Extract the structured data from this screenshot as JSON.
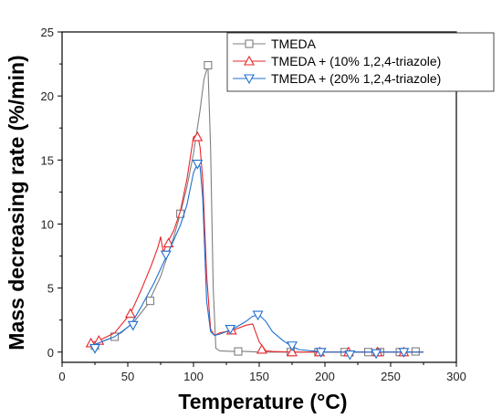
{
  "chart_data": {
    "type": "line",
    "xlabel": "Temperature (°C)",
    "ylabel": "Mass decreasing rate (%/min)",
    "xlim": [
      0,
      300
    ],
    "ylim": [
      -0.8,
      25
    ],
    "xticks": [
      0,
      50,
      100,
      150,
      200,
      250,
      300
    ],
    "yticks": [
      0,
      5,
      10,
      15,
      20,
      25
    ],
    "grid": false,
    "legend_position": "top-right",
    "series": [
      {
        "name": "TMEDA",
        "color": "#7f7f7f",
        "marker": "square",
        "x": [
          22,
          28,
          35,
          45,
          55,
          65,
          75,
          85,
          90,
          95,
          100,
          105,
          108,
          111,
          113,
          115,
          117,
          120,
          130,
          140,
          150,
          160,
          180,
          200,
          220,
          240,
          260,
          275
        ],
        "y": [
          0.5,
          0.75,
          1.0,
          1.5,
          2.4,
          3.7,
          5.9,
          9.0,
          10.8,
          12.9,
          15.5,
          18.9,
          21.3,
          22.4,
          16.0,
          5.0,
          0.3,
          0.1,
          0.05,
          0.05,
          0.0,
          0.0,
          0.0,
          0.0,
          0.0,
          0.0,
          0.0,
          0.0
        ],
        "marker_x": [
          25,
          40,
          67,
          90,
          111,
          134,
          174,
          195,
          215,
          233,
          242,
          257,
          269
        ],
        "marker_y": [
          0.5,
          1.2,
          4.0,
          10.8,
          22.4,
          0.05,
          0.0,
          0.0,
          0.0,
          0.0,
          0.0,
          0.0,
          0.05
        ]
      },
      {
        "name": "TMEDA + (10% 1,2,4-triazole)",
        "color": "#e8262a",
        "marker": "triangle-up",
        "x": [
          22,
          30,
          40,
          52,
          60,
          68,
          73,
          75,
          77,
          80,
          85,
          90,
          95,
          100,
          103,
          105,
          107,
          110,
          113,
          116,
          120,
          125,
          130,
          140,
          145,
          150,
          155,
          160,
          175,
          200,
          240,
          275
        ],
        "y": [
          0.7,
          1.0,
          1.5,
          3.0,
          4.8,
          6.8,
          8.2,
          9.0,
          7.8,
          8.5,
          9.5,
          11.0,
          13.5,
          16.8,
          17.0,
          16.0,
          13.5,
          6.0,
          1.8,
          1.3,
          1.5,
          1.6,
          1.7,
          2.1,
          2.2,
          0.8,
          0.1,
          0.05,
          0.0,
          0.0,
          0.0,
          0.0
        ],
        "marker_x": [
          22,
          28,
          52,
          81,
          103,
          129,
          152,
          175,
          196,
          218,
          240,
          260
        ],
        "marker_y": [
          0.7,
          0.9,
          3.0,
          8.5,
          16.8,
          1.7,
          0.2,
          0.0,
          0.0,
          0.0,
          0.0,
          0.0
        ]
      },
      {
        "name": "TMEDA + (20% 1,2,4-triazole)",
        "color": "#1f6fd1",
        "marker": "triangle-down",
        "x": [
          22,
          30,
          40,
          52,
          60,
          70,
          80,
          90,
          95,
          100,
          103,
          105,
          107,
          110,
          113,
          116,
          120,
          130,
          140,
          145,
          150,
          155,
          160,
          168,
          174,
          180,
          200,
          240,
          275
        ],
        "y": [
          0.5,
          0.8,
          1.2,
          2.1,
          3.5,
          5.4,
          7.6,
          9.9,
          11.5,
          14.0,
          14.7,
          14.5,
          12.0,
          4.0,
          1.6,
          1.3,
          1.4,
          1.8,
          2.4,
          2.8,
          2.9,
          2.4,
          1.6,
          0.9,
          0.5,
          0.2,
          0.0,
          0.0,
          0.0
        ],
        "marker_x": [
          25,
          54,
          79,
          103,
          128,
          149,
          175,
          197,
          219,
          239,
          260
        ],
        "marker_y": [
          0.3,
          2.1,
          7.6,
          14.7,
          1.8,
          2.9,
          0.5,
          0.0,
          -0.2,
          -0.1,
          0.0
        ]
      }
    ]
  }
}
